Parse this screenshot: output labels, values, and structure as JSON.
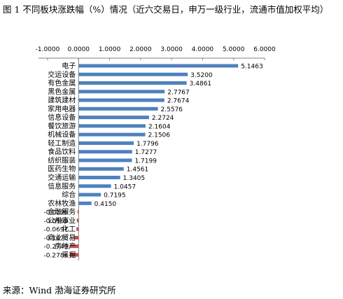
{
  "title": "图 1 不同板块涨跌幅（%）情况（近六交易日，申万一级行业，流通市值加权平均）",
  "source": "来源：Wind  渤海证券研究所",
  "colors": {
    "positive": "#4F81BD",
    "negative": "#C0504D"
  },
  "chart_data": {
    "type": "bar",
    "orientation": "horizontal",
    "title": "",
    "xlabel": "",
    "ylabel": "",
    "xlim": [
      -1,
      6
    ],
    "xticks": [
      -1,
      0,
      1,
      2,
      3,
      4,
      5,
      6
    ],
    "xtick_labels": [
      "-1.0000",
      "0.0000",
      "1.0000",
      "2.0000",
      "3.0000",
      "4.0000",
      "5.0000",
      "6.0000"
    ],
    "axis_position": "top",
    "grid": false,
    "categories": [
      "电子",
      "交运设备",
      "有色金属",
      "黑色金属",
      "建筑建材",
      "家用电器",
      "信息设备",
      "餐饮旅游",
      "机械设备",
      "轻工制造",
      "食品饮料",
      "纺织服装",
      "医药生物",
      "交通运输",
      "信息服务",
      "综合",
      "农林牧渔",
      "金融服务",
      "公用事业",
      "化工",
      "商业贸易",
      "房地产",
      "采掘"
    ],
    "values": [
      5.1463,
      3.52,
      3.4861,
      2.7767,
      2.7674,
      2.5576,
      2.2724,
      2.1604,
      2.1506,
      1.7796,
      1.7277,
      1.7199,
      1.4561,
      1.3405,
      1.0457,
      0.7195,
      0.415,
      -0.0196,
      -0.0569,
      -0.0697,
      -0.147,
      -0.2749,
      -0.2785
    ],
    "value_labels": [
      "5.1463",
      "3.5200",
      "3.4861",
      "2.7767",
      "2.7674",
      "2.5576",
      "2.2724",
      "2.1604",
      "2.1506",
      "1.7796",
      "1.7277",
      "1.7199",
      "1.4561",
      "1.3405",
      "1.0457",
      "0.7195",
      "0.4150",
      "-0.0196",
      "-0.0569",
      "-0.0697",
      "-0.1470",
      "-0.2749",
      "-0.2785"
    ]
  }
}
